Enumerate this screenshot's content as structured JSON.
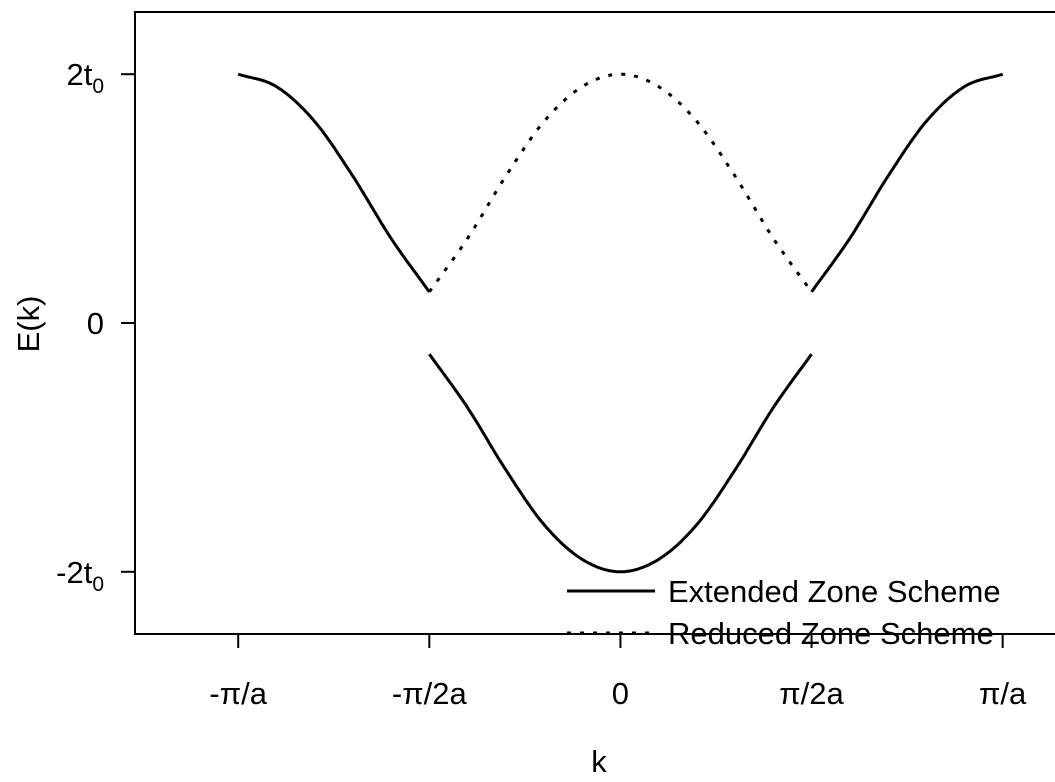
{
  "chart_data": {
    "type": "line",
    "title": "",
    "xlabel": "k",
    "ylabel": "E(k)",
    "xlim": [
      -1.27,
      1.15
    ],
    "ylim": [
      -2.5,
      2.5
    ],
    "x_ticks": [
      {
        "value": -1.0,
        "label": "-π/a"
      },
      {
        "value": -0.5,
        "label": "-π/2a"
      },
      {
        "value": 0.0,
        "label": "0"
      },
      {
        "value": 0.5,
        "label": "π/2a"
      },
      {
        "value": 1.0,
        "label": "π/a"
      }
    ],
    "y_ticks": [
      {
        "value": 2,
        "label": "2t",
        "sub": "0"
      },
      {
        "value": 0,
        "label": "0",
        "sub": ""
      },
      {
        "value": -2,
        "label": "-2t",
        "sub": "0"
      }
    ],
    "x_unit": "π/a",
    "y_unit": "t₀",
    "series": [
      {
        "name": "Extended Zone Scheme",
        "style": "solid",
        "segments": [
          {
            "x": [
              -1.0,
              -0.9,
              -0.8,
              -0.7,
              -0.6,
              -0.5
            ],
            "y": [
              2.0,
              1.9,
              1.62,
              1.18,
              0.68,
              0.25
            ]
          },
          {
            "x": [
              0.5,
              0.6,
              0.7,
              0.8,
              0.9,
              1.0
            ],
            "y": [
              0.25,
              0.68,
              1.18,
              1.62,
              1.9,
              2.0
            ]
          },
          {
            "x": [
              -0.5,
              -0.4,
              -0.3,
              -0.2,
              -0.1,
              0.0,
              0.1,
              0.2,
              0.3,
              0.4,
              0.5
            ],
            "y": [
              -0.25,
              -0.68,
              -1.18,
              -1.62,
              -1.9,
              -2.0,
              -1.9,
              -1.62,
              -1.18,
              -0.68,
              -0.25
            ]
          }
        ]
      },
      {
        "name": "Reduced Zone Scheme",
        "style": "dotted",
        "segments": [
          {
            "x": [
              -0.5,
              -0.4,
              -0.3,
              -0.2,
              -0.1,
              0.0,
              0.1,
              0.2,
              0.3,
              0.4,
              0.5
            ],
            "y": [
              0.25,
              0.68,
              1.18,
              1.62,
              1.9,
              2.0,
              1.9,
              1.62,
              1.18,
              0.68,
              0.25
            ]
          }
        ]
      }
    ],
    "grid": false,
    "legend": "bottom-right",
    "colors": {
      "line": "#000000",
      "frame": "#000000",
      "background": "#ffffff"
    }
  }
}
